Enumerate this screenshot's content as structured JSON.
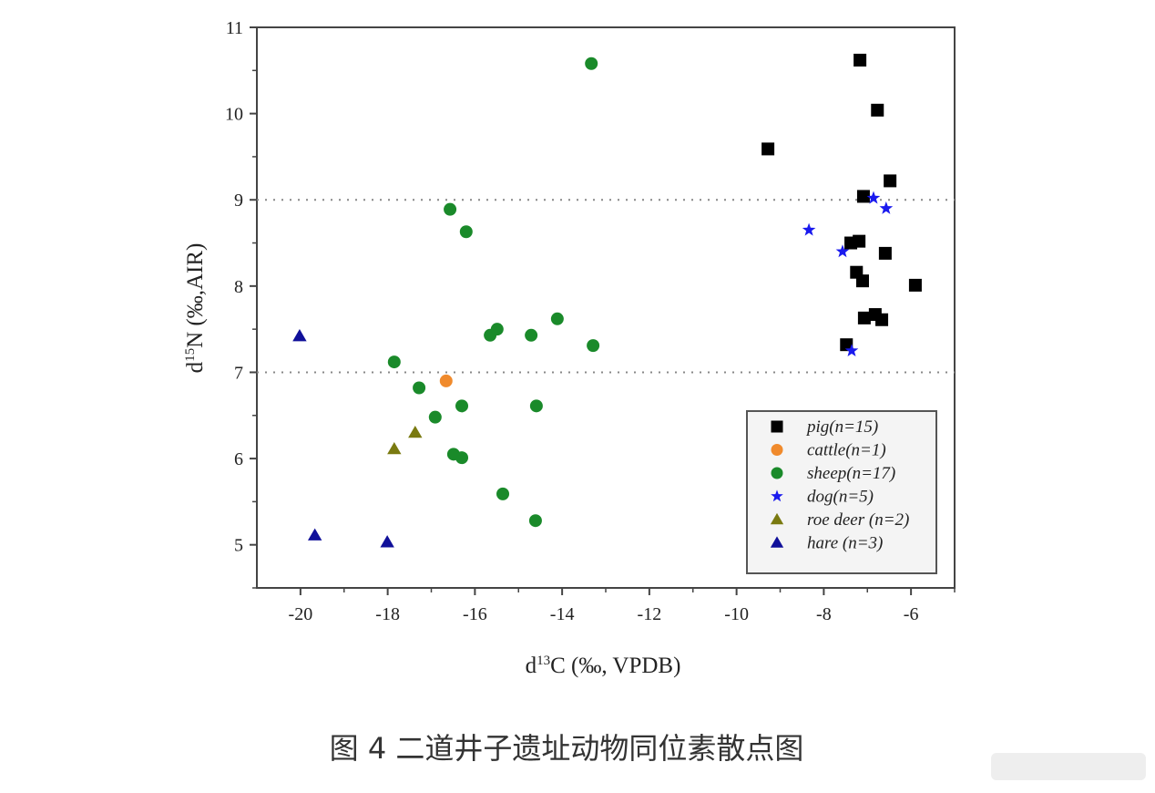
{
  "chart_data": {
    "type": "scatter",
    "title": "",
    "caption": "图 4 二道井子遗址动物同位素散点图",
    "xlabel": {
      "pre": "d",
      "sup": "13",
      "post": "C (‰,  VPDB)"
    },
    "ylabel": {
      "pre": "d",
      "sup": "15",
      "post": "N (‰,AIR)"
    },
    "xlim": [
      -21,
      -5
    ],
    "ylim": [
      4.5,
      11
    ],
    "xticks": [
      -20,
      -18,
      -16,
      -14,
      -12,
      -10,
      -8,
      -6
    ],
    "yticks": [
      5,
      6,
      7,
      8,
      9,
      10,
      11
    ],
    "reference_lines_y": [
      7,
      9
    ],
    "grid": false,
    "legend_position": "bottom-right",
    "series": [
      {
        "name": "pig(n=15)",
        "marker": "square",
        "color": "#000000",
        "x": [
          -7.17,
          -6.77,
          -9.28,
          -6.48,
          -7.09,
          -7.38,
          -7.19,
          -6.59,
          -7.25,
          -7.11,
          -5.9,
          -7.07,
          -6.82,
          -6.67,
          -7.48
        ],
        "y": [
          10.62,
          10.04,
          9.59,
          9.22,
          9.04,
          8.5,
          8.52,
          8.38,
          8.16,
          8.06,
          8.01,
          7.63,
          7.67,
          7.61,
          7.32
        ]
      },
      {
        "name": "cattle(n=1)",
        "marker": "circle",
        "color": "#f08a2c",
        "x": [
          -16.66
        ],
        "y": [
          6.9
        ]
      },
      {
        "name": "sheep(n=17)",
        "marker": "circle",
        "color": "#1a8a2a",
        "x": [
          -13.33,
          -16.57,
          -16.2,
          -17.85,
          -17.28,
          -15.65,
          -15.49,
          -14.71,
          -14.11,
          -13.29,
          -16.91,
          -16.3,
          -14.59,
          -16.49,
          -16.3,
          -15.36,
          -14.61
        ],
        "y": [
          10.58,
          8.89,
          8.63,
          7.12,
          6.82,
          7.43,
          7.5,
          7.43,
          7.62,
          7.31,
          6.48,
          6.61,
          6.61,
          6.05,
          6.01,
          5.59,
          5.28
        ]
      },
      {
        "name": "dog(n=5)",
        "marker": "star",
        "color": "#1a1aee",
        "x": [
          -8.34,
          -7.57,
          -6.86,
          -6.57,
          -7.36
        ],
        "y": [
          8.65,
          8.4,
          9.02,
          8.9,
          7.25
        ]
      },
      {
        "name": "roe deer (n=2)",
        "marker": "triangle",
        "color": "#7a7a10",
        "x": [
          -17.85,
          -17.37
        ],
        "y": [
          6.11,
          6.3
        ]
      },
      {
        "name": "hare (n=3)",
        "marker": "triangle",
        "color": "#10109a",
        "x": [
          -20.02,
          -19.67,
          -18.01
        ],
        "y": [
          7.42,
          5.11,
          5.03
        ]
      }
    ]
  }
}
